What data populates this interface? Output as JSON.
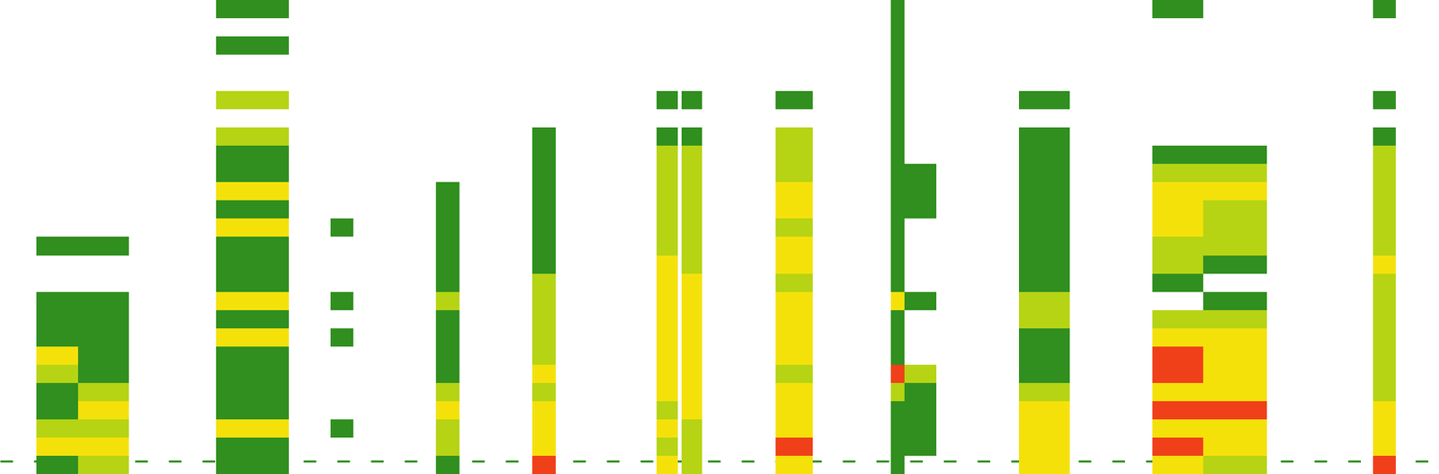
{
  "chart_data": {
    "type": "spectrogram",
    "xlim": [
      0,
      1568
    ],
    "ylim": [
      0,
      520
    ],
    "tick_labels": false,
    "value_range": [
      0,
      4
    ],
    "colors": [
      "#ffffff",
      "#2f8f1f",
      "#b5d414",
      "#f5e30a",
      "#f0401a"
    ],
    "baseline": 14,
    "segments": [
      {
        "x": [
          40,
          85
        ],
        "cells": [
          1,
          3,
          2,
          1,
          1,
          2,
          3,
          1,
          1,
          1,
          0,
          0,
          1,
          0,
          0,
          0,
          0,
          0,
          0,
          0,
          0,
          0,
          0,
          0,
          0,
          0
        ]
      },
      {
        "x": [
          85,
          140
        ],
        "cells": [
          2,
          3,
          2,
          3,
          2,
          1,
          1,
          1,
          1,
          1,
          0,
          0,
          1,
          0,
          0,
          0,
          0,
          0,
          0,
          0,
          0,
          0,
          0,
          0,
          0,
          0
        ]
      },
      {
        "x": [
          235,
          315
        ],
        "cells": [
          1,
          1,
          3,
          1,
          1,
          1,
          1,
          3,
          1,
          3,
          1,
          1,
          1,
          3,
          1,
          3,
          1,
          1,
          2,
          0,
          2,
          0,
          0,
          1,
          0,
          1
        ]
      },
      {
        "x": [
          360,
          385
        ],
        "cells": [
          0,
          0,
          1,
          0,
          0,
          0,
          0,
          1,
          0,
          1,
          0,
          0,
          0,
          1,
          0,
          0,
          0,
          0,
          0,
          0,
          0,
          0,
          0,
          0,
          0,
          0
        ]
      },
      {
        "x": [
          475,
          500
        ],
        "cells": [
          1,
          2,
          2,
          3,
          2,
          1,
          1,
          1,
          1,
          2,
          1,
          1,
          1,
          1,
          1,
          1,
          0,
          0,
          0,
          0,
          0,
          0,
          0,
          0,
          0,
          0
        ]
      },
      {
        "x": [
          580,
          605
        ],
        "cells": [
          4,
          3,
          3,
          3,
          2,
          3,
          2,
          2,
          2,
          2,
          2,
          1,
          1,
          1,
          1,
          1,
          1,
          1,
          1,
          0,
          0,
          0,
          0,
          0,
          0,
          0
        ]
      },
      {
        "x": [
          715,
          738
        ],
        "cells": [
          3,
          2,
          3,
          2,
          3,
          3,
          3,
          3,
          3,
          3,
          3,
          3,
          2,
          2,
          2,
          2,
          2,
          2,
          1,
          0,
          1,
          0,
          0,
          0,
          0,
          0
        ]
      },
      {
        "x": [
          742,
          765
        ],
        "cells": [
          2,
          2,
          2,
          3,
          3,
          3,
          3,
          3,
          3,
          3,
          3,
          2,
          2,
          2,
          2,
          2,
          2,
          2,
          1,
          0,
          1,
          0,
          0,
          0,
          0,
          0
        ]
      },
      {
        "x": [
          845,
          885
        ],
        "cells": [
          3,
          4,
          3,
          3,
          3,
          2,
          3,
          3,
          3,
          3,
          2,
          3,
          3,
          2,
          3,
          3,
          2,
          2,
          2,
          0,
          1,
          0,
          0,
          0,
          0,
          0
        ]
      },
      {
        "x": [
          970,
          985
        ],
        "cells": [
          1,
          1,
          1,
          1,
          2,
          4,
          1,
          1,
          1,
          3,
          1,
          1,
          1,
          1,
          1,
          1,
          1,
          1,
          1,
          1,
          1,
          1,
          1,
          1,
          1,
          1
        ]
      },
      {
        "x": [
          985,
          1020
        ],
        "cells": [
          0,
          1,
          1,
          1,
          1,
          2,
          0,
          0,
          0,
          1,
          0,
          0,
          0,
          0,
          1,
          1,
          1,
          0,
          0,
          0,
          0,
          0,
          0,
          0,
          0,
          0
        ]
      },
      {
        "x": [
          1110,
          1165
        ],
        "cells": [
          3,
          3,
          3,
          3,
          2,
          1,
          1,
          1,
          2,
          2,
          1,
          1,
          1,
          1,
          1,
          1,
          1,
          1,
          1,
          0,
          1,
          0,
          0,
          0,
          0,
          0
        ]
      },
      {
        "x": [
          1255,
          1310
        ],
        "cells": [
          3,
          4,
          3,
          4,
          3,
          4,
          4,
          3,
          2,
          0,
          1,
          2,
          2,
          3,
          3,
          3,
          2,
          1,
          0,
          0,
          0,
          0,
          0,
          0,
          0,
          1
        ]
      },
      {
        "x": [
          1310,
          1380
        ],
        "cells": [
          2,
          3,
          3,
          4,
          3,
          3,
          3,
          3,
          2,
          1,
          0,
          1,
          2,
          2,
          2,
          3,
          2,
          1,
          0,
          0,
          0,
          0,
          0,
          0,
          0,
          0
        ]
      },
      {
        "x": [
          1495,
          1520
        ],
        "cells": [
          4,
          3,
          3,
          3,
          2,
          2,
          2,
          2,
          2,
          2,
          2,
          3,
          2,
          2,
          2,
          2,
          2,
          2,
          1,
          0,
          1,
          0,
          0,
          0,
          0,
          1
        ]
      }
    ]
  }
}
